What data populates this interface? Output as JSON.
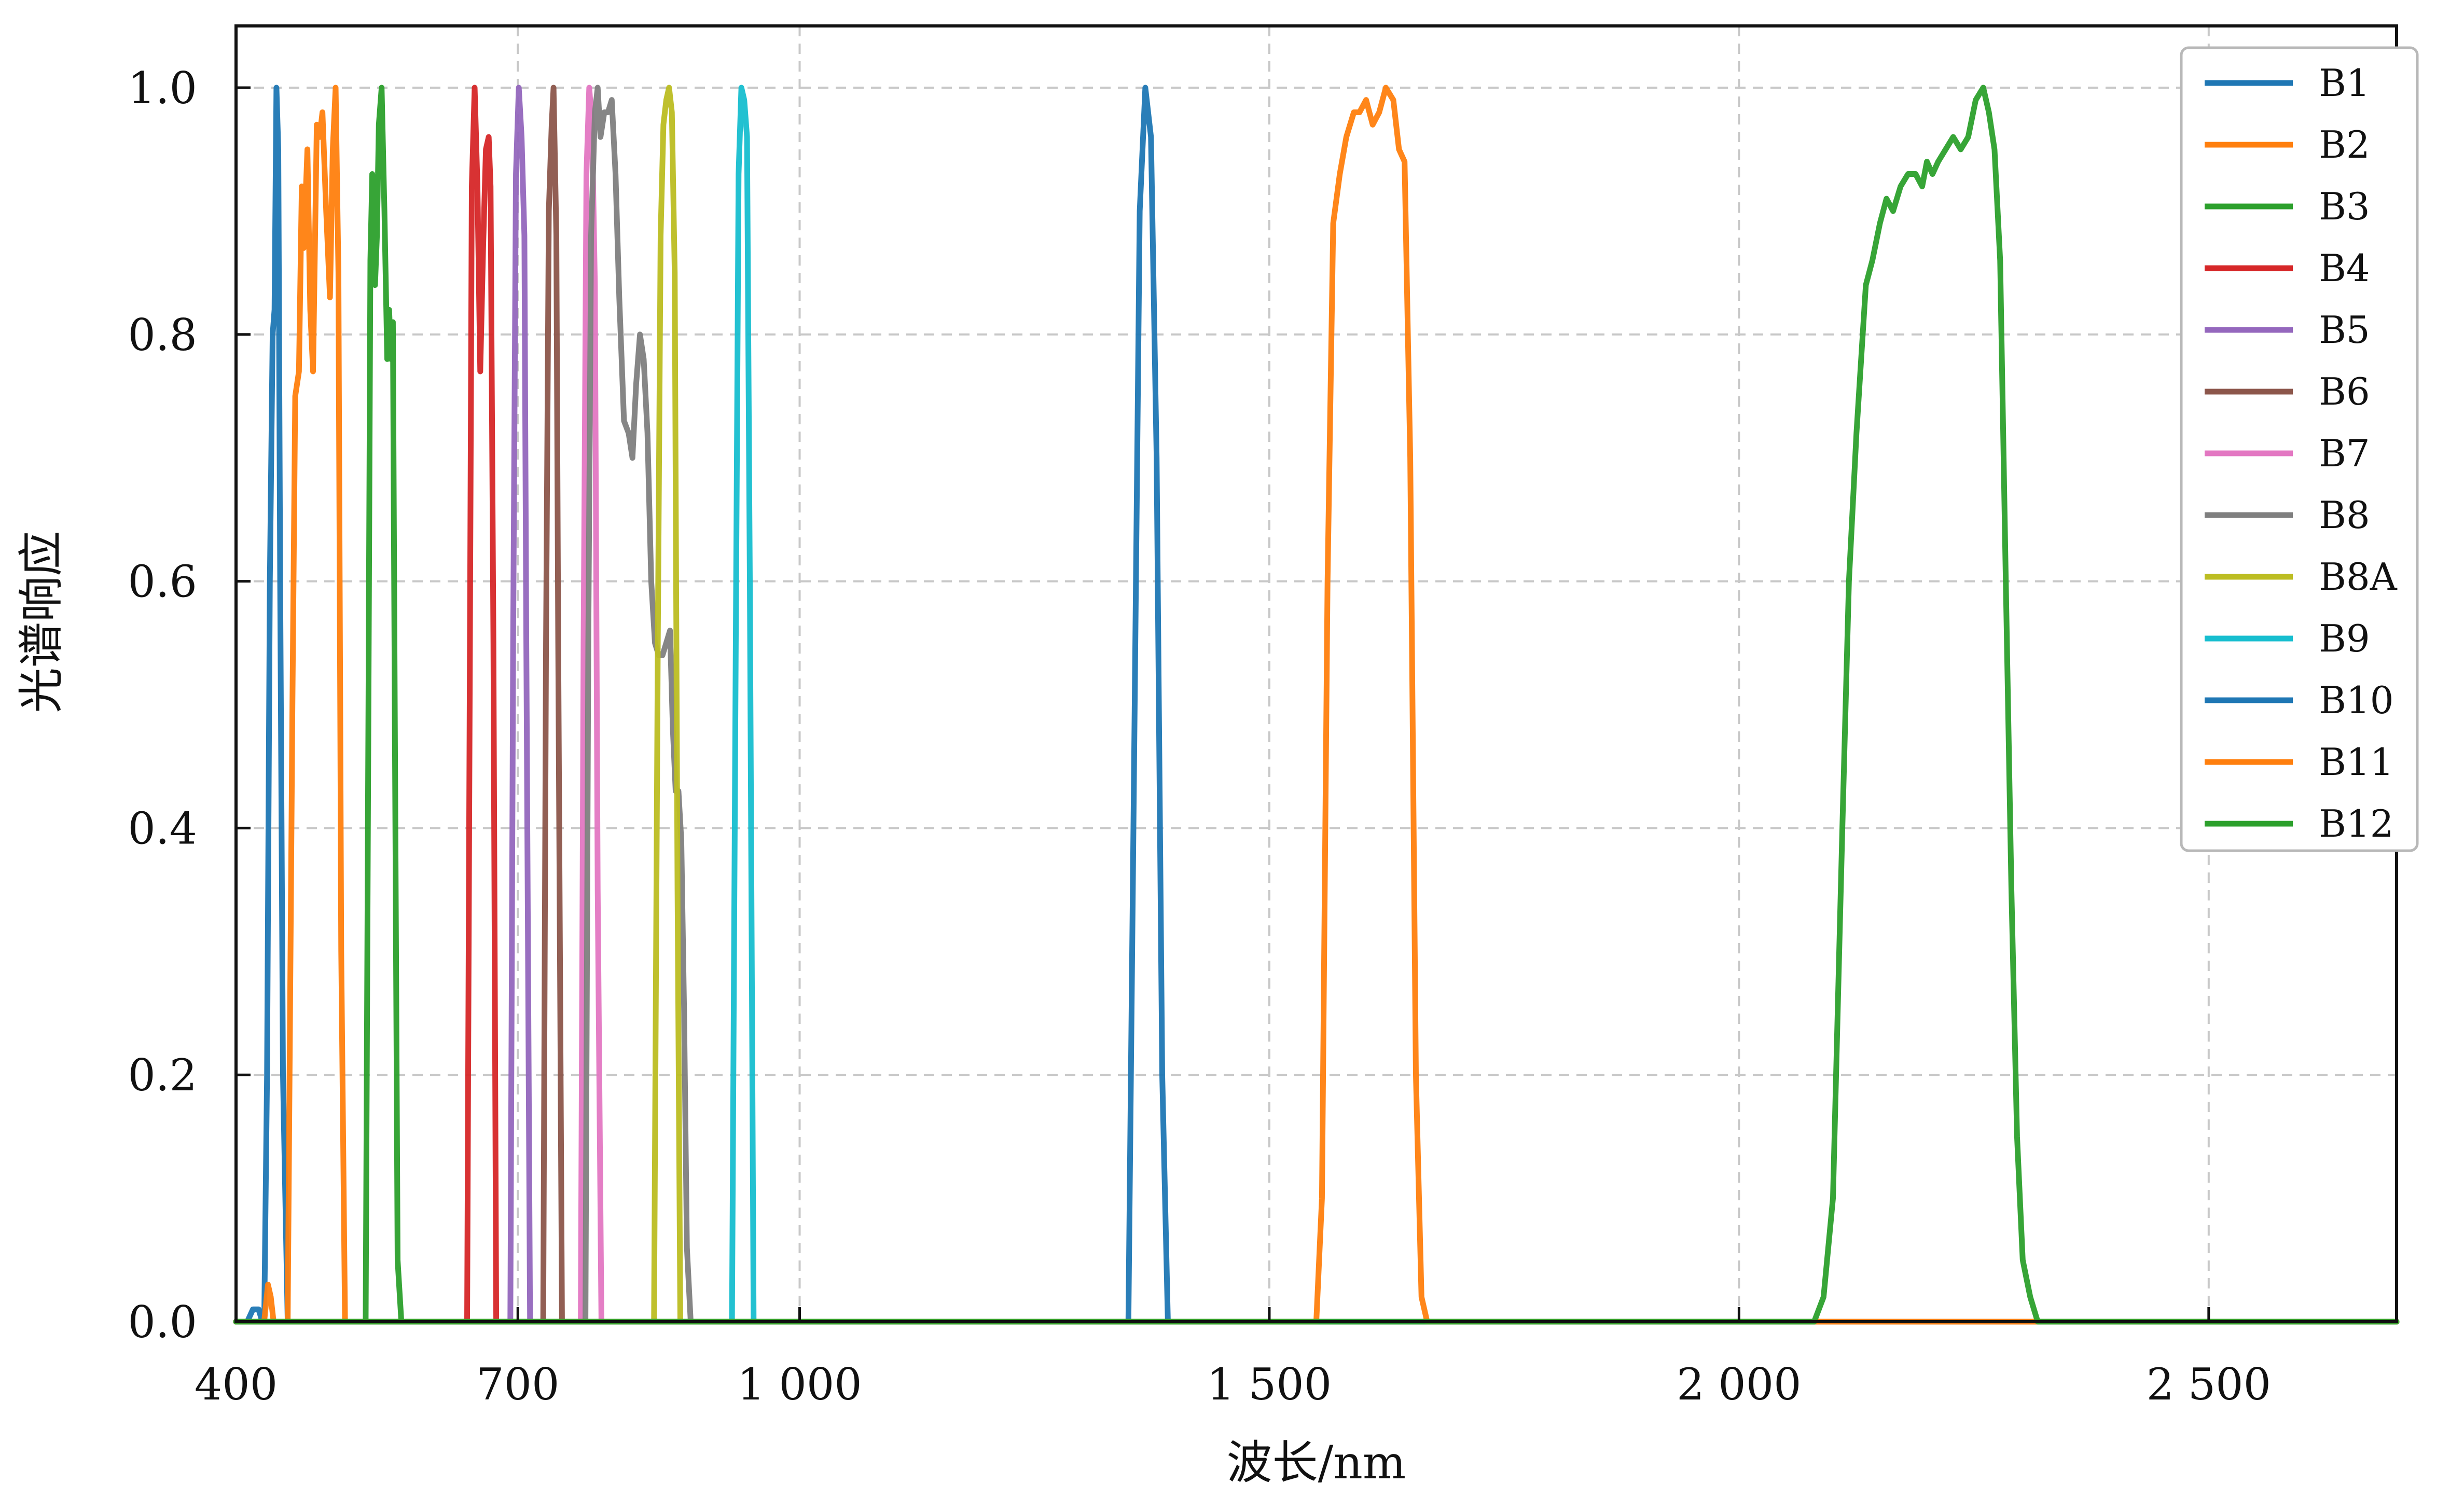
{
  "chart_data": {
    "type": "line",
    "title": "",
    "xlabel": "波长/nm",
    "ylabel": "光谱响应",
    "xlim": [
      400,
      2700
    ],
    "ylim": [
      0,
      1.05
    ],
    "xticks": [
      400,
      700,
      1000,
      1500,
      2000,
      2500
    ],
    "xtick_labels": [
      "400",
      "700",
      "1 000",
      "1 500",
      "2 000",
      "2 500"
    ],
    "yticks": [
      0.0,
      0.2,
      0.4,
      0.6,
      0.8,
      1.0
    ],
    "ytick_labels": [
      "0.0",
      "0.2",
      "0.4",
      "0.6",
      "0.8",
      "1.0"
    ],
    "grid": true,
    "legend_position": "top-right",
    "series": [
      {
        "name": "B1",
        "color": "#1f77b4",
        "points": [
          [
            412,
            0
          ],
          [
            418,
            0.01
          ],
          [
            424,
            0.01
          ],
          [
            428,
            0
          ],
          [
            430,
            0
          ],
          [
            433,
            0.2
          ],
          [
            436,
            0.6
          ],
          [
            439,
            0.8
          ],
          [
            441,
            0.82
          ],
          [
            443,
            1.0
          ],
          [
            445,
            0.95
          ],
          [
            447,
            0.6
          ],
          [
            450,
            0.2
          ],
          [
            455,
            0
          ]
        ]
      },
      {
        "name": "B2",
        "color": "#ff7f0e",
        "points": [
          [
            430,
            0
          ],
          [
            434,
            0.03
          ],
          [
            437,
            0.02
          ],
          [
            440,
            0
          ],
          [
            455,
            0
          ],
          [
            460,
            0.5
          ],
          [
            463,
            0.75
          ],
          [
            467,
            0.77
          ],
          [
            470,
            0.92
          ],
          [
            472,
            0.87
          ],
          [
            476,
            0.95
          ],
          [
            479,
            0.82
          ],
          [
            482,
            0.77
          ],
          [
            486,
            0.97
          ],
          [
            489,
            0.96
          ],
          [
            492,
            0.98
          ],
          [
            496,
            0.9
          ],
          [
            500,
            0.83
          ],
          [
            503,
            0.95
          ],
          [
            506,
            1.0
          ],
          [
            509,
            0.85
          ],
          [
            512,
            0.3
          ],
          [
            516,
            0
          ]
        ]
      },
      {
        "name": "B3",
        "color": "#2ca02c",
        "points": [
          [
            538,
            0
          ],
          [
            541,
            0.5
          ],
          [
            543,
            0.86
          ],
          [
            545,
            0.93
          ],
          [
            548,
            0.84
          ],
          [
            550,
            0.88
          ],
          [
            552,
            0.97
          ],
          [
            555,
            1.0
          ],
          [
            558,
            0.9
          ],
          [
            561,
            0.78
          ],
          [
            563,
            0.82
          ],
          [
            565,
            0.78
          ],
          [
            567,
            0.81
          ],
          [
            569,
            0.5
          ],
          [
            572,
            0.05
          ],
          [
            576,
            0
          ]
        ]
      },
      {
        "name": "B4",
        "color": "#d62728",
        "points": [
          [
            646,
            0
          ],
          [
            649,
            0.55
          ],
          [
            651,
            0.92
          ],
          [
            654,
            1.0
          ],
          [
            657,
            0.92
          ],
          [
            660,
            0.77
          ],
          [
            663,
            0.87
          ],
          [
            666,
            0.95
          ],
          [
            669,
            0.96
          ],
          [
            671,
            0.92
          ],
          [
            674,
            0.55
          ],
          [
            677,
            0
          ]
        ]
      },
      {
        "name": "B5",
        "color": "#9467bd",
        "points": [
          [
            692,
            0
          ],
          [
            695,
            0.55
          ],
          [
            698,
            0.93
          ],
          [
            701,
            1.0
          ],
          [
            704,
            0.96
          ],
          [
            707,
            0.88
          ],
          [
            709,
            0.55
          ],
          [
            713,
            0
          ]
        ]
      },
      {
        "name": "B6",
        "color": "#8c564b",
        "points": [
          [
            727,
            0
          ],
          [
            730,
            0.55
          ],
          [
            733,
            0.9
          ],
          [
            736,
            0.97
          ],
          [
            738,
            1.0
          ],
          [
            741,
            0.88
          ],
          [
            743,
            0.55
          ],
          [
            747,
            0
          ]
        ]
      },
      {
        "name": "B7",
        "color": "#e377c2",
        "points": [
          [
            767,
            0
          ],
          [
            770,
            0.55
          ],
          [
            773,
            0.93
          ],
          [
            776,
            1.0
          ],
          [
            779,
            0.97
          ],
          [
            782,
            0.84
          ],
          [
            785,
            0.35
          ],
          [
            789,
            0
          ]
        ]
      },
      {
        "name": "B8",
        "color": "#7f7f7f",
        "points": [
          [
            767,
            0
          ],
          [
            772,
            0
          ],
          [
            775,
            0.55
          ],
          [
            778,
            0.88
          ],
          [
            782,
            0.98
          ],
          [
            785,
            1.0
          ],
          [
            788,
            0.96
          ],
          [
            792,
            0.98
          ],
          [
            796,
            0.98
          ],
          [
            800,
            0.99
          ],
          [
            804,
            0.93
          ],
          [
            808,
            0.83
          ],
          [
            813,
            0.73
          ],
          [
            818,
            0.72
          ],
          [
            822,
            0.7
          ],
          [
            826,
            0.76
          ],
          [
            830,
            0.8
          ],
          [
            834,
            0.78
          ],
          [
            838,
            0.72
          ],
          [
            842,
            0.6
          ],
          [
            846,
            0.55
          ],
          [
            850,
            0.54
          ],
          [
            854,
            0.54
          ],
          [
            858,
            0.55
          ],
          [
            862,
            0.56
          ],
          [
            865,
            0.48
          ],
          [
            868,
            0.43
          ],
          [
            871,
            0.43
          ],
          [
            874,
            0.39
          ],
          [
            877,
            0.25
          ],
          [
            880,
            0.06
          ],
          [
            884,
            0
          ]
        ]
      },
      {
        "name": "B8A",
        "color": "#bcbd22",
        "points": [
          [
            845,
            0
          ],
          [
            849,
            0.55
          ],
          [
            852,
            0.88
          ],
          [
            855,
            0.97
          ],
          [
            858,
            0.99
          ],
          [
            861,
            1.0
          ],
          [
            864,
            0.98
          ],
          [
            867,
            0.85
          ],
          [
            870,
            0.35
          ],
          [
            873,
            0
          ]
        ]
      },
      {
        "name": "B9",
        "color": "#17becf",
        "points": [
          [
            928,
            0
          ],
          [
            932,
            0.55
          ],
          [
            935,
            0.93
          ],
          [
            938,
            1.0
          ],
          [
            941,
            0.99
          ],
          [
            944,
            0.96
          ],
          [
            947,
            0.6
          ],
          [
            951,
            0
          ]
        ]
      },
      {
        "name": "B10",
        "color": "#1f77b4",
        "points": [
          [
            1350,
            0
          ],
          [
            1356,
            0.45
          ],
          [
            1362,
            0.9
          ],
          [
            1368,
            1.0
          ],
          [
            1374,
            0.96
          ],
          [
            1380,
            0.7
          ],
          [
            1386,
            0.2
          ],
          [
            1392,
            0
          ]
        ]
      },
      {
        "name": "B11",
        "color": "#ff7f0e",
        "points": [
          [
            1550,
            0
          ],
          [
            1556,
            0.1
          ],
          [
            1562,
            0.6
          ],
          [
            1568,
            0.89
          ],
          [
            1575,
            0.93
          ],
          [
            1582,
            0.96
          ],
          [
            1590,
            0.98
          ],
          [
            1596,
            0.98
          ],
          [
            1603,
            0.99
          ],
          [
            1610,
            0.97
          ],
          [
            1617,
            0.98
          ],
          [
            1624,
            1.0
          ],
          [
            1632,
            0.99
          ],
          [
            1638,
            0.95
          ],
          [
            1644,
            0.94
          ],
          [
            1650,
            0.7
          ],
          [
            1656,
            0.2
          ],
          [
            1662,
            0.02
          ],
          [
            1668,
            0
          ]
        ]
      },
      {
        "name": "B12",
        "color": "#2ca02c",
        "points": [
          [
            2080,
            0
          ],
          [
            2090,
            0.02
          ],
          [
            2100,
            0.1
          ],
          [
            2110,
            0.4
          ],
          [
            2117,
            0.6
          ],
          [
            2125,
            0.72
          ],
          [
            2135,
            0.84
          ],
          [
            2142,
            0.86
          ],
          [
            2150,
            0.89
          ],
          [
            2157,
            0.91
          ],
          [
            2164,
            0.9
          ],
          [
            2172,
            0.92
          ],
          [
            2180,
            0.93
          ],
          [
            2188,
            0.93
          ],
          [
            2195,
            0.92
          ],
          [
            2200,
            0.94
          ],
          [
            2206,
            0.93
          ],
          [
            2212,
            0.94
          ],
          [
            2220,
            0.95
          ],
          [
            2228,
            0.96
          ],
          [
            2236,
            0.95
          ],
          [
            2244,
            0.96
          ],
          [
            2252,
            0.99
          ],
          [
            2260,
            1.0
          ],
          [
            2266,
            0.98
          ],
          [
            2272,
            0.95
          ],
          [
            2278,
            0.86
          ],
          [
            2284,
            0.6
          ],
          [
            2290,
            0.35
          ],
          [
            2296,
            0.15
          ],
          [
            2302,
            0.05
          ],
          [
            2310,
            0.02
          ],
          [
            2318,
            0
          ]
        ]
      }
    ]
  }
}
